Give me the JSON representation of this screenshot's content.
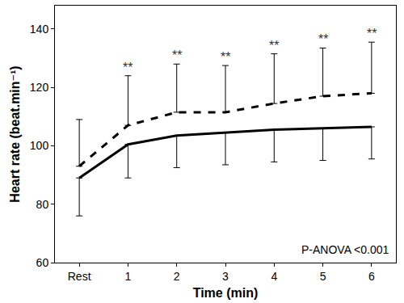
{
  "chart_data": {
    "type": "line",
    "x_label": "Time (min)",
    "y_label": "Heart rate (beat.min⁻¹)",
    "categories": [
      "Rest",
      "1",
      "2",
      "3",
      "4",
      "5",
      "6"
    ],
    "series": [
      {
        "color": "#000000",
        "line_style": "dash",
        "values": [
          93,
          107,
          111.5,
          111.5,
          114.5,
          117,
          118
        ],
        "error_upper": [
          16,
          17,
          16.5,
          16,
          17,
          16.5,
          17.5
        ]
      },
      {
        "color": "#000000",
        "line_style": "solid",
        "values": [
          89,
          100.5,
          103.5,
          104.5,
          105.5,
          106,
          106.5
        ],
        "error_lower": [
          13,
          11.5,
          11,
          11,
          11,
          11,
          11
        ]
      }
    ],
    "ylim": [
      60,
      148
    ],
    "yticks": [
      60,
      80,
      100,
      120,
      140
    ],
    "grid": false,
    "annotations": [
      {
        "category": "1",
        "text": "**"
      },
      {
        "category": "2",
        "text": "**"
      },
      {
        "category": "3",
        "text": "**"
      },
      {
        "category": "4",
        "text": "**"
      },
      {
        "category": "5",
        "text": "**"
      },
      {
        "category": "6",
        "text": "**"
      },
      {
        "text": "P-ANOVA <0.001"
      }
    ]
  }
}
